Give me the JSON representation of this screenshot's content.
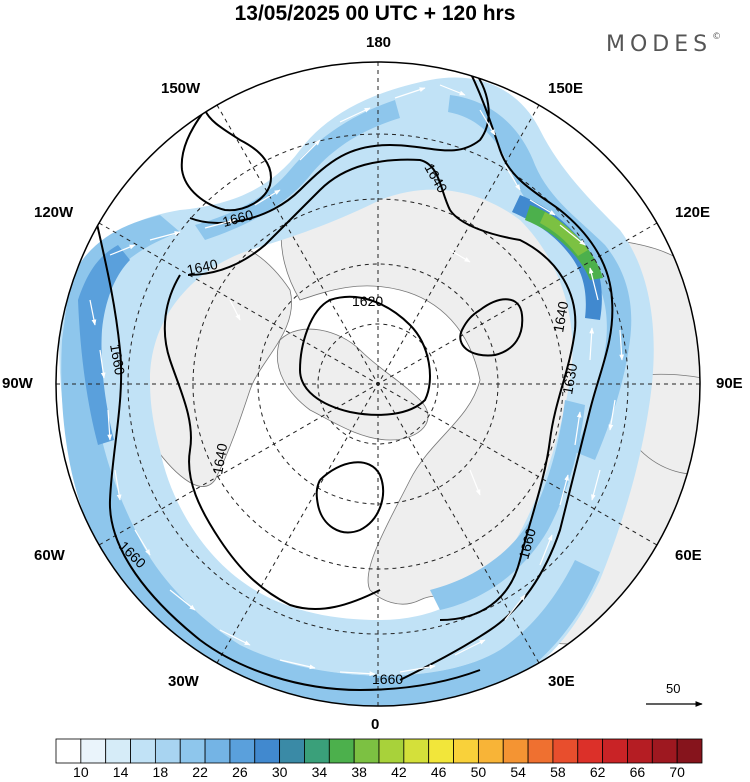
{
  "header": {
    "title": "13/05/2025  00 UTC  + 120 hrs",
    "brand": "MODES",
    "brand_mark": "©"
  },
  "longitude_labels": {
    "n180": "180",
    "n150w": "150W",
    "n150e": "150E",
    "n120w": "120W",
    "n120e": "120E",
    "n90w": "90W",
    "n90e": "90E",
    "n60w": "60W",
    "n60e": "60E",
    "n30w": "30W",
    "n30e": "30E",
    "n0": "0"
  },
  "contour_labels": [
    {
      "text": "1660"
    },
    {
      "text": "1640"
    },
    {
      "text": "1640"
    },
    {
      "text": "1620"
    },
    {
      "text": "1640"
    },
    {
      "text": "1630"
    },
    {
      "text": "1660"
    },
    {
      "text": "1640"
    },
    {
      "text": "1660"
    },
    {
      "text": "1660"
    },
    {
      "text": "1660"
    }
  ],
  "wind_reference": {
    "value": "50"
  },
  "colorbar": {
    "tick_labels": [
      "10",
      "14",
      "18",
      "22",
      "26",
      "30",
      "34",
      "38",
      "42",
      "46",
      "50",
      "54",
      "58",
      "62",
      "66",
      "70"
    ],
    "colors": [
      "#ffffff",
      "#eaf4fb",
      "#d6ecf8",
      "#c1e2f6",
      "#a8d4f1",
      "#8ec6ec",
      "#74b4e5",
      "#5aa0dc",
      "#4189cf",
      "#3a8aa6",
      "#3aa07a",
      "#4cb04c",
      "#7cc142",
      "#a8d23a",
      "#d4e03a",
      "#f2e63a",
      "#f9d13a",
      "#f8b437",
      "#f49433",
      "#ef7030",
      "#e84e2d",
      "#dc3029",
      "#c92326",
      "#b51d23",
      "#9e1820",
      "#86141c"
    ]
  }
}
